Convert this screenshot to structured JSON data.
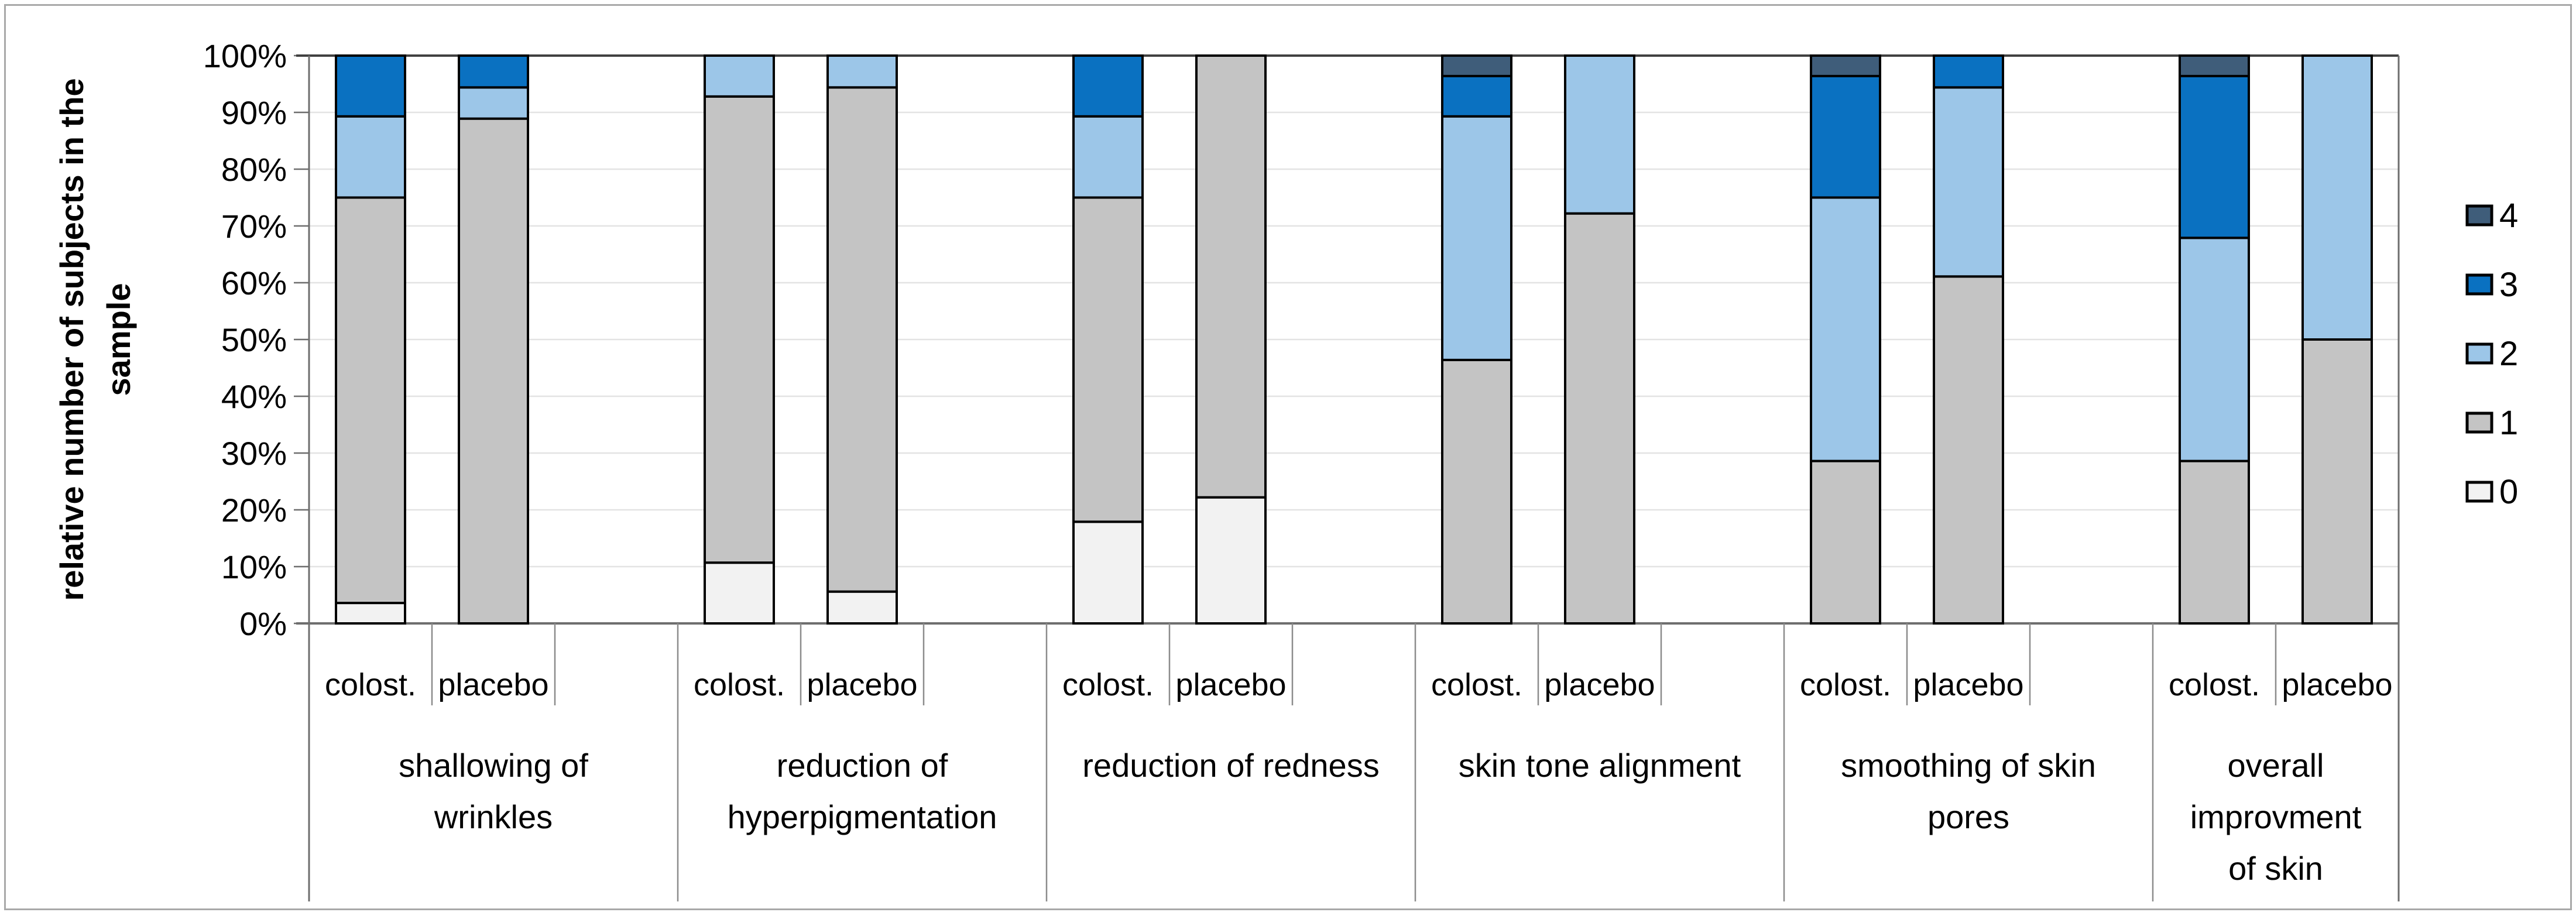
{
  "figure": {
    "background": "#FFFFFF",
    "border_color": "#A9A9A9"
  },
  "y_axis": {
    "title_lines": [
      "relative number of subjects in the",
      "sample"
    ],
    "tick_labels": [
      "0%",
      "10%",
      "20%",
      "30%",
      "40%",
      "50%",
      "60%",
      "70%",
      "80%",
      "90%",
      "100%"
    ],
    "min": 0,
    "max": 100
  },
  "x_axis": {
    "series_labels": [
      "colost.",
      "placebo"
    ]
  },
  "legend": {
    "items": [
      {
        "label": "4",
        "color": "#3F5D7A"
      },
      {
        "label": "3",
        "color": "#0A71C1"
      },
      {
        "label": "2",
        "color": "#9CC6E8"
      },
      {
        "label": "1",
        "color": "#C4C4C4"
      },
      {
        "label": "0",
        "color": "#F2F2F2"
      }
    ]
  },
  "chart_data": {
    "type": "bar",
    "stacked": true,
    "units": "percent",
    "title": "",
    "xlabel": "",
    "ylabel": "relative number of subjects in the sample",
    "ylim": [
      0,
      100
    ],
    "grid": true,
    "legend_position": "right",
    "series_order_bottom_to_top": [
      "0",
      "1",
      "2",
      "3",
      "4"
    ],
    "series_colors": {
      "0": "#F2F2F2",
      "1": "#C4C4C4",
      "2": "#9CC6E8",
      "3": "#0A71C1",
      "4": "#3F5D7A"
    },
    "groups": [
      {
        "category": "shallowing of wrinkles",
        "label_lines": [
          "shallowing of",
          "wrinkles"
        ],
        "bars": [
          {
            "label": "colost.",
            "values": {
              "0": 3.6,
              "1": 71.4,
              "2": 14.3,
              "3": 10.7,
              "4": 0
            }
          },
          {
            "label": "placebo",
            "values": {
              "0": 0,
              "1": 88.9,
              "2": 5.5,
              "3": 5.6,
              "4": 0
            }
          }
        ]
      },
      {
        "category": "reduction of hyperpigmentation",
        "label_lines": [
          "reduction of",
          "hyperpigmentation"
        ],
        "bars": [
          {
            "label": "colost.",
            "values": {
              "0": 10.7,
              "1": 82.1,
              "2": 7.2,
              "3": 0,
              "4": 0
            }
          },
          {
            "label": "placebo",
            "values": {
              "0": 5.6,
              "1": 88.8,
              "2": 5.6,
              "3": 0,
              "4": 0
            }
          }
        ]
      },
      {
        "category": "reduction of redness",
        "label_lines": [
          "reduction of redness"
        ],
        "bars": [
          {
            "label": "colost.",
            "values": {
              "0": 17.9,
              "1": 57.1,
              "2": 14.3,
              "3": 10.7,
              "4": 0
            }
          },
          {
            "label": "placebo",
            "values": {
              "0": 22.2,
              "1": 77.8,
              "2": 0,
              "3": 0,
              "4": 0
            }
          }
        ]
      },
      {
        "category": "skin tone alignment",
        "label_lines": [
          "skin tone alignment"
        ],
        "bars": [
          {
            "label": "colost.",
            "values": {
              "0": 0,
              "1": 46.4,
              "2": 42.9,
              "3": 7.1,
              "4": 3.6
            }
          },
          {
            "label": "placebo",
            "values": {
              "0": 0,
              "1": 72.2,
              "2": 27.8,
              "3": 0,
              "4": 0
            }
          }
        ]
      },
      {
        "category": "smoothing of skin pores",
        "label_lines": [
          "smoothing of skin",
          "pores"
        ],
        "bars": [
          {
            "label": "colost.",
            "values": {
              "0": 0,
              "1": 28.6,
              "2": 46.4,
              "3": 21.4,
              "4": 3.6
            }
          },
          {
            "label": "placebo",
            "values": {
              "0": 0,
              "1": 61.1,
              "2": 33.3,
              "3": 5.6,
              "4": 0
            }
          }
        ]
      },
      {
        "category": "overall improvment of skin",
        "label_lines": [
          "overall",
          "improvment",
          "of skin"
        ],
        "bars": [
          {
            "label": "colost.",
            "values": {
              "0": 0,
              "1": 28.6,
              "2": 39.3,
              "3": 28.5,
              "4": 3.6
            }
          },
          {
            "label": "placebo",
            "values": {
              "0": 0,
              "1": 50,
              "2": 50,
              "3": 0,
              "4": 0
            }
          }
        ]
      }
    ]
  }
}
